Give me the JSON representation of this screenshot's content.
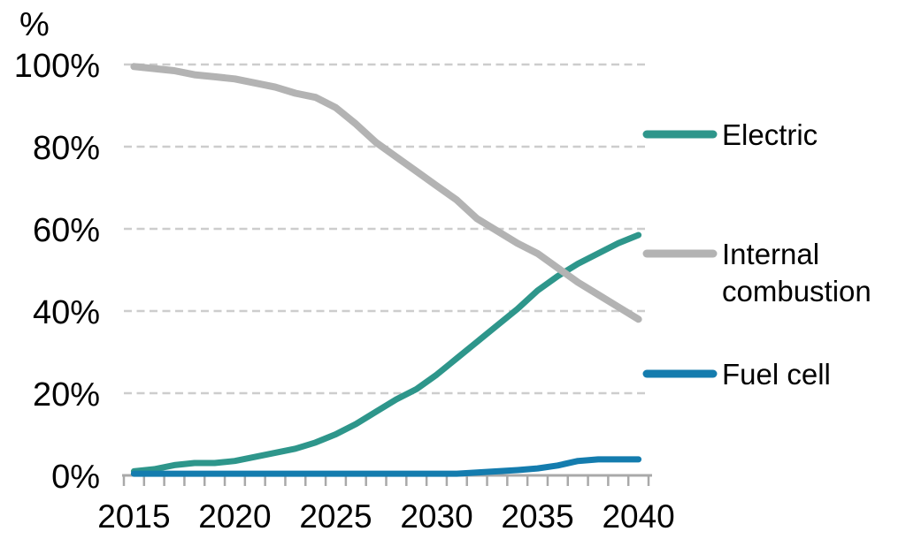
{
  "chart_data": {
    "type": "line",
    "title": "",
    "unit_label": "%",
    "xlabel": "",
    "ylabel": "%",
    "ylim": [
      0,
      100
    ],
    "grid": "horizontal-dashed",
    "legend_position": "right",
    "x": [
      2015,
      2016,
      2017,
      2018,
      2019,
      2020,
      2021,
      2022,
      2023,
      2024,
      2025,
      2026,
      2027,
      2028,
      2029,
      2030,
      2031,
      2032,
      2033,
      2034,
      2035,
      2036,
      2037,
      2038,
      2039,
      2040
    ],
    "x_tick_labels": [
      "2015",
      "2020",
      "2025",
      "2030",
      "2035",
      "2040"
    ],
    "y_tick_labels": [
      "0%",
      "20%",
      "40%",
      "60%",
      "80%",
      "100%"
    ],
    "y_tick_values": [
      0,
      20,
      40,
      60,
      80,
      100
    ],
    "series": [
      {
        "name": "Electric",
        "legend_lines": [
          "Electric"
        ],
        "color": "#2E968B",
        "values": [
          1,
          1.5,
          2.5,
          3,
          3,
          3.5,
          4.5,
          5.5,
          6.5,
          8,
          10,
          12.5,
          15.5,
          18.5,
          21,
          24.5,
          28.5,
          32.5,
          36.5,
          40.5,
          45,
          48.5,
          51.5,
          54,
          56.5,
          58.5
        ]
      },
      {
        "name": "Internal combustion",
        "legend_lines": [
          "Internal",
          "combustion"
        ],
        "color": "#B3B3B3",
        "values": [
          99.5,
          99,
          98.5,
          97.5,
          97,
          96.5,
          95.5,
          94.5,
          93,
          92,
          89.5,
          85.5,
          81,
          77.5,
          74,
          70.5,
          67,
          62.5,
          59.5,
          56.5,
          54,
          50.5,
          47,
          44,
          41,
          38
        ]
      },
      {
        "name": "Fuel cell",
        "legend_lines": [
          "Fuel cell"
        ],
        "color": "#147CAE",
        "values": [
          0.4,
          0.4,
          0.4,
          0.4,
          0.4,
          0.4,
          0.4,
          0.4,
          0.4,
          0.4,
          0.4,
          0.4,
          0.4,
          0.4,
          0.4,
          0.4,
          0.4,
          0.7,
          1,
          1.3,
          1.7,
          2.4,
          3.5,
          3.9,
          3.9,
          3.9
        ]
      }
    ],
    "colors": {
      "gridline": "#CDCDCD",
      "axis": "#A9A9A9",
      "text": "#000000",
      "background": "#FFFFFF"
    }
  }
}
